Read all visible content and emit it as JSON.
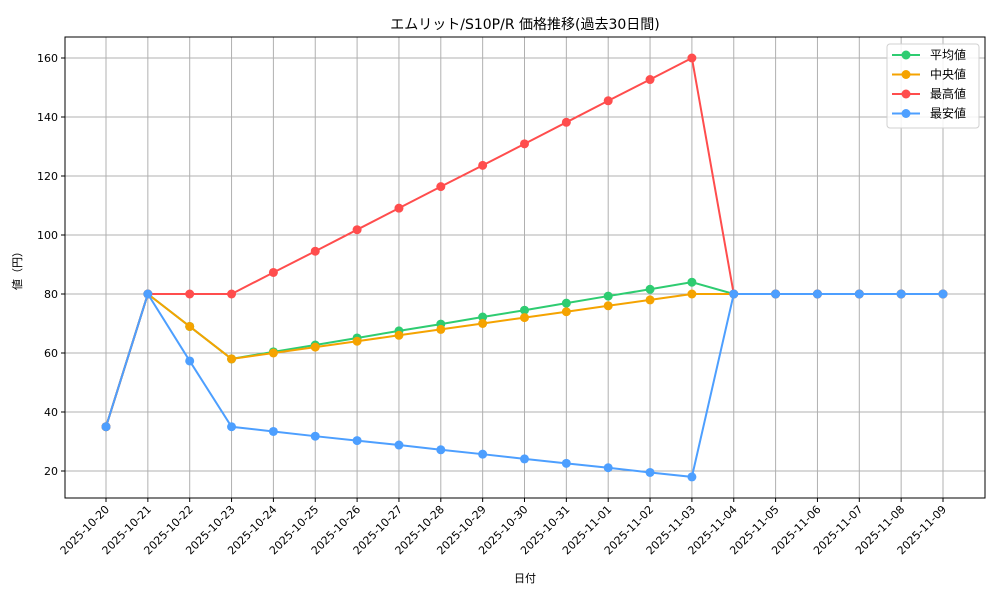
{
  "chart_data": {
    "type": "line",
    "title": "エムリット/S10P/R 価格推移(過去30日間)",
    "xlabel": "日付",
    "ylabel": "値（円）",
    "ylim": [
      11,
      167
    ],
    "yticks": [
      20,
      40,
      60,
      80,
      100,
      120,
      140,
      160
    ],
    "grid": true,
    "legend_position": "upper right",
    "x": [
      "2025-10-20",
      "2025-10-21",
      "2025-10-22",
      "2025-10-23",
      "2025-10-24",
      "2025-10-25",
      "2025-10-26",
      "2025-10-27",
      "2025-10-28",
      "2025-10-29",
      "2025-10-30",
      "2025-10-31",
      "2025-11-01",
      "2025-11-02",
      "2025-11-03",
      "2025-11-04",
      "2025-11-05",
      "2025-11-06",
      "2025-11-07",
      "2025-11-08",
      "2025-11-09"
    ],
    "series": [
      {
        "name": "平均値",
        "color": "#2ecc71",
        "values": [
          35,
          80,
          69,
          58,
          60.4,
          62.7,
          65.1,
          67.5,
          69.8,
          72.2,
          74.5,
          76.9,
          79.3,
          81.6,
          84,
          80,
          80,
          80,
          80,
          80,
          80
        ]
      },
      {
        "name": "中央値",
        "color": "#f5a300",
        "values": [
          35,
          80,
          69,
          58,
          60,
          62,
          64,
          66,
          68,
          70,
          72,
          74,
          76,
          78,
          80,
          80,
          80,
          80,
          80,
          80,
          80
        ]
      },
      {
        "name": "最高値",
        "color": "#ff4d4d",
        "values": [
          35,
          80,
          80,
          80,
          87.3,
          94.5,
          101.8,
          109.1,
          116.4,
          123.6,
          130.9,
          138.2,
          145.5,
          152.7,
          160,
          80,
          80,
          80,
          80,
          80,
          80
        ]
      },
      {
        "name": "最安値",
        "color": "#4d9fff",
        "values": [
          35,
          80,
          57.3,
          35,
          33.4,
          31.8,
          30.3,
          28.8,
          27.2,
          25.7,
          24.1,
          22.6,
          21.1,
          19.5,
          18,
          80,
          80,
          80,
          80,
          80,
          80
        ]
      }
    ]
  }
}
